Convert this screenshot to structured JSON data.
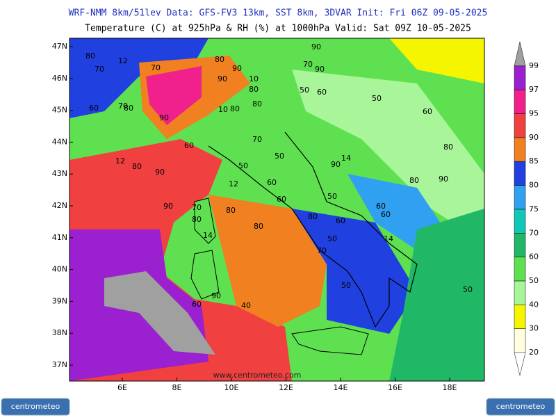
{
  "header": {
    "line1": "WRF-NMM 8km/51lev   Data: GFS-FV3 13km, SST 8km, 3DVAR   Init: Fri 06Z 09-05-2025",
    "line2": "Temperature (C) at 925hPa & RH (%) at 1000hPa   Valid: Sat 09Z 10-05-2025"
  },
  "map": {
    "lon_ticks": [
      "6E",
      "8E",
      "10E",
      "12E",
      "14E",
      "16E",
      "18E"
    ],
    "lat_ticks": [
      "47N",
      "46N",
      "45N",
      "44N",
      "43N",
      "42N",
      "41N",
      "40N",
      "39N",
      "38N",
      "37N"
    ],
    "watermark": "www.centrometeo.com",
    "contour_labels": [
      "80",
      "12",
      "70",
      "70",
      "80",
      "90",
      "90",
      "10",
      "80",
      "50",
      "60",
      "60",
      "70",
      "90",
      "10",
      "80",
      "80",
      "80",
      "90",
      "90",
      "70",
      "60",
      "80",
      "70",
      "90",
      "12",
      "50",
      "14",
      "60",
      "50",
      "90",
      "12",
      "90",
      "80",
      "70",
      "60",
      "80",
      "80",
      "50",
      "60",
      "60",
      "80",
      "14",
      "70",
      "50",
      "60",
      "14",
      "90",
      "80",
      "60",
      "90",
      "40",
      "50",
      "50",
      "60",
      "80",
      "50"
    ]
  },
  "colorbar": {
    "levels": [
      20,
      30,
      40,
      50,
      60,
      70,
      75,
      80,
      85,
      90,
      95,
      97,
      99
    ],
    "colors": [
      "#ffffe0",
      "#f5f500",
      "#a8f59a",
      "#5fe050",
      "#20b866",
      "#10c8b8",
      "#30a0f0",
      "#2040e0",
      "#f08020",
      "#f04040",
      "#f0208c",
      "#9a20d0"
    ],
    "top_color": "#a0a0a0"
  },
  "footer": {
    "logo_left": "centrometeo",
    "logo_right": "centrometeo"
  }
}
